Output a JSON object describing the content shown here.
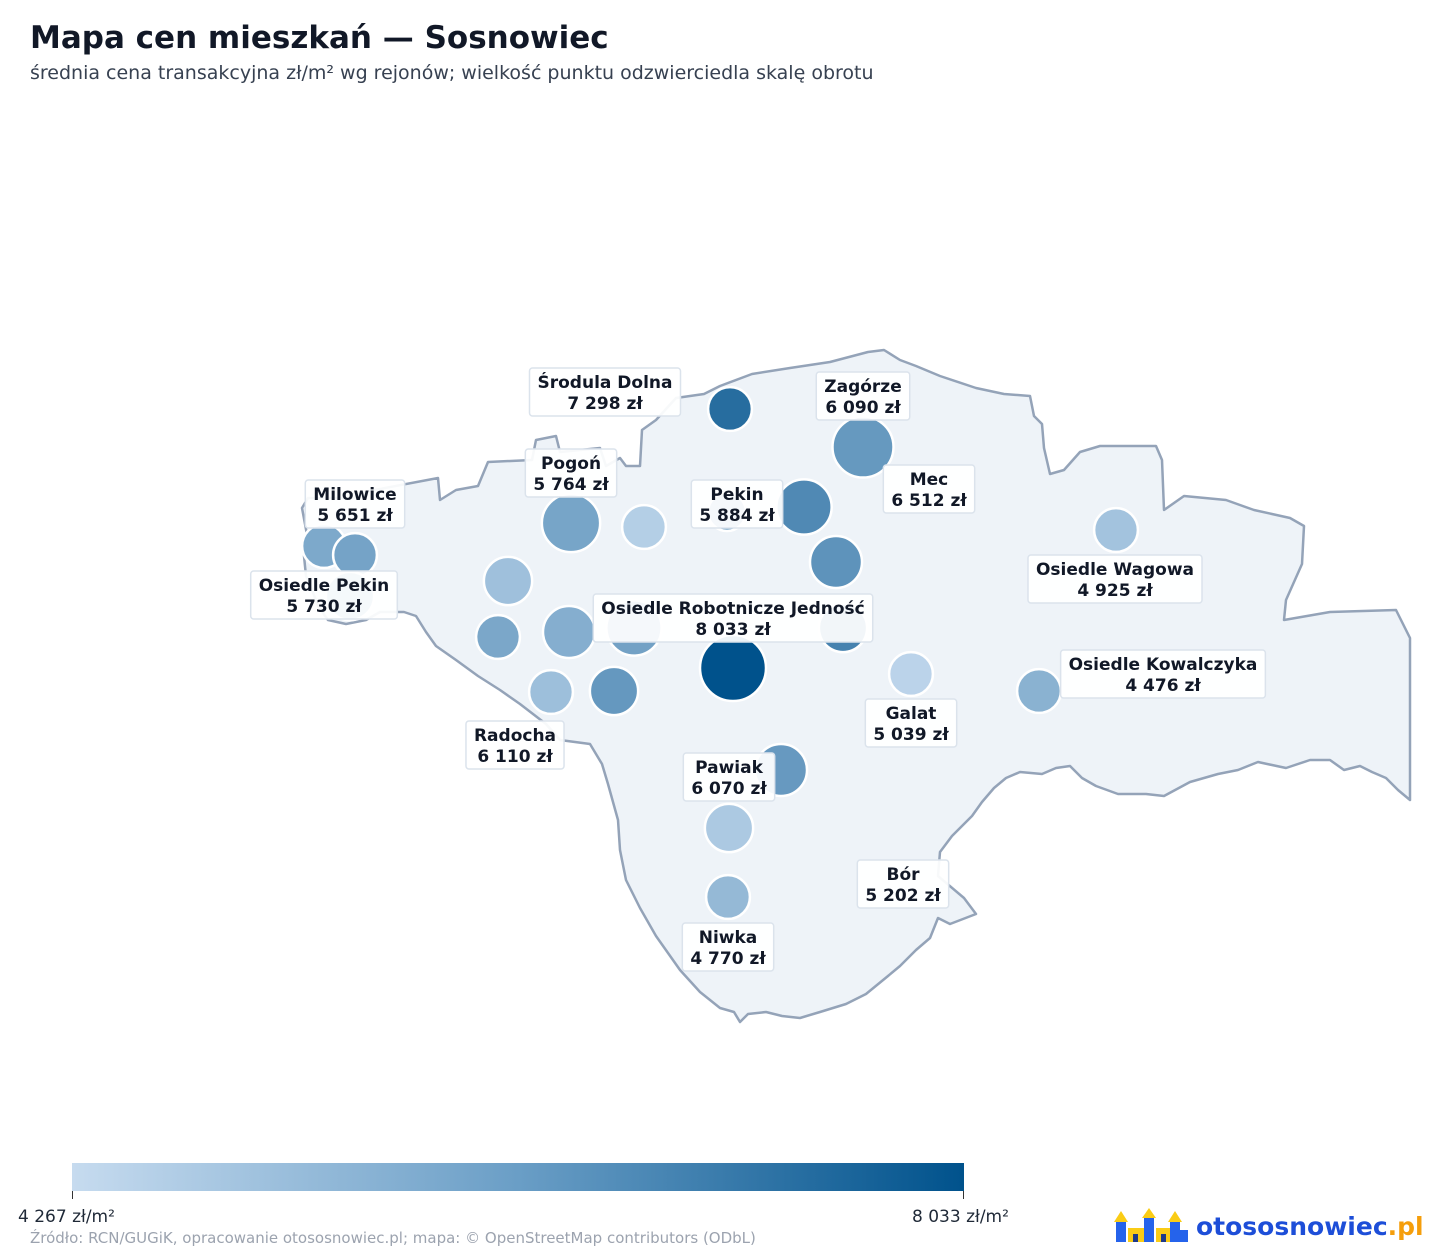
{
  "title": "Mapa cen mieszkań — Sosnowiec",
  "subtitle": "średnia cena transakcyjna zł/m² wg rejonów; wielkość punktu odzwierciedla skalę obrotu",
  "legend": {
    "min_label": "4 267 zł/m²",
    "max_label": "8 033 zł/m²",
    "min_value": 4267,
    "max_value": 8033,
    "color_min": "#c6dbef",
    "color_max": "#00528c"
  },
  "source": "Źródło: RCN/GUGiK, opracowanie otososnowiec.pl; mapa: © OpenStreetMap contributors (ODbL)",
  "logo": {
    "name": "otososnowiec",
    "tld": ".pl",
    "icon": "castle-icon"
  },
  "colors": {
    "area_fill": "#eef3f8",
    "area_stroke": "#94a3b8"
  },
  "districts": [
    {
      "name": "Środula Dolna",
      "price": "7 298 zł"
    },
    {
      "name": "Zagórze",
      "price": "6 090 zł"
    },
    {
      "name": "Pogoń",
      "price": "5 764 zł"
    },
    {
      "name": "Milowice",
      "price": "5 651 zł"
    },
    {
      "name": "Pekin",
      "price": "5 884 zł"
    },
    {
      "name": "Mec",
      "price": "6 512 zł"
    },
    {
      "name": "Osiedle Wagowa",
      "price": "4 925 zł"
    },
    {
      "name": "Osiedle Pekin",
      "price": "5 730 zł"
    },
    {
      "name": "Osiedle Robotnicze Jedność",
      "price": "8 033 zł"
    },
    {
      "name": "Osiedle Kowalczyka",
      "price": "4 476 zł"
    },
    {
      "name": "Radocha",
      "price": "6 110 zł"
    },
    {
      "name": "Galat",
      "price": "5 039 zł"
    },
    {
      "name": "Pawiak",
      "price": "6 070 zł"
    },
    {
      "name": "Bór",
      "price": "5 202 zł"
    },
    {
      "name": "Niwka",
      "price": "4 770 zł"
    }
  ],
  "points": [
    {
      "price": 7298,
      "turnover": 2
    },
    {
      "price": 6090,
      "turnover": 7
    },
    {
      "price": 5764,
      "turnover": 6
    },
    {
      "price": 4600,
      "turnover": 2
    },
    {
      "price": 5651,
      "turnover": 2
    },
    {
      "price": 5800,
      "turnover": 2
    },
    {
      "price": 6512,
      "turnover": 5
    },
    {
      "price": 5884,
      "turnover": 1
    },
    {
      "price": 6250,
      "turnover": 4
    },
    {
      "price": 4925,
      "turnover": 2
    },
    {
      "price": 5000,
      "turnover": 3
    },
    {
      "price": 5730,
      "turnover": 3
    },
    {
      "price": 5850,
      "turnover": 5
    },
    {
      "price": 5500,
      "turnover": 4
    },
    {
      "price": 6700,
      "turnover": 3
    },
    {
      "price": 8033,
      "turnover": 9
    },
    {
      "price": 5700,
      "turnover": 2
    },
    {
      "price": 6110,
      "turnover": 3
    },
    {
      "price": 5039,
      "turnover": 2
    },
    {
      "price": 4476,
      "turnover": 2
    },
    {
      "price": 5400,
      "turnover": 2
    },
    {
      "price": 6070,
      "turnover": 4
    },
    {
      "price": 4770,
      "turnover": 3
    },
    {
      "price": 5202,
      "turnover": 2
    }
  ]
}
